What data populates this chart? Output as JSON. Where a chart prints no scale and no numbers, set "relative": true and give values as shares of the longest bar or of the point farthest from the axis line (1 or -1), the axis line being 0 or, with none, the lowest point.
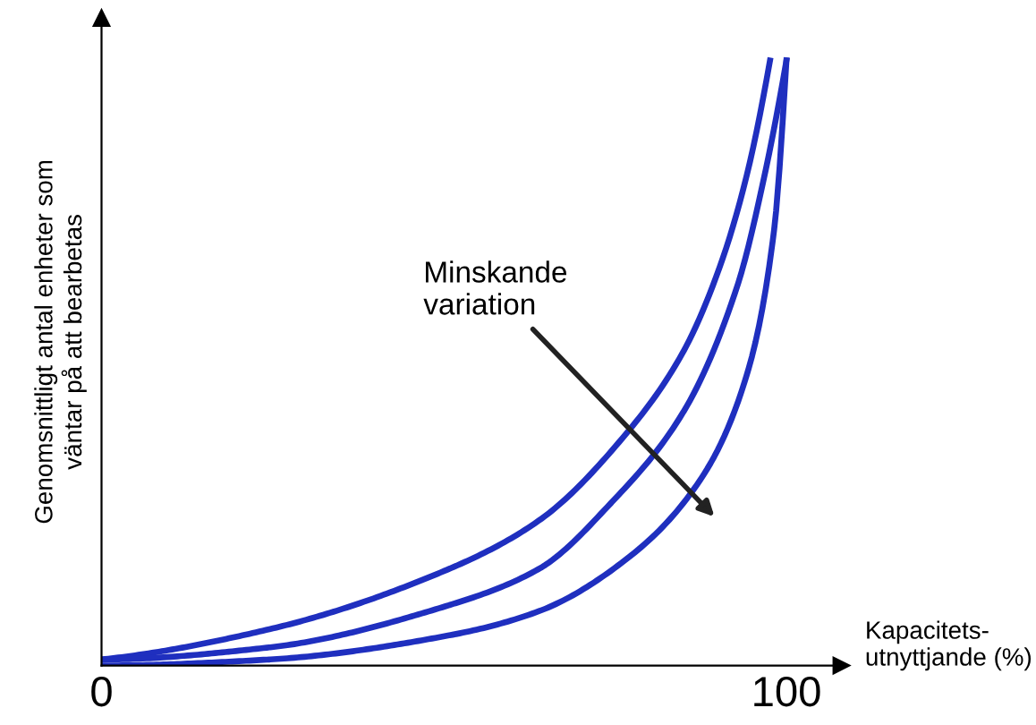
{
  "chart_data": {
    "type": "line",
    "relative": true,
    "xlabel": "Kapacitets-\nutnyttjande (%)",
    "ylabel": "Genomsnittligt antal enheter som\nväntar på att bearbetas",
    "xlim": [
      0,
      108
    ],
    "xticks": [
      0,
      100
    ],
    "tick_labels": "x",
    "grid": false,
    "marker": "none",
    "line_style": "solid",
    "annotations": [
      "Minskande\nvariation"
    ],
    "series": [
      {
        "color": "#1f2fbf",
        "x": [
          0,
          24.5,
          50.8,
          63.9,
          77.1,
          85,
          90.3,
          94.2,
          97.6
        ],
        "values": [
          0.01,
          0.06,
          0.16,
          0.24,
          0.39,
          0.52,
          0.66,
          0.81,
          1.0
        ]
      },
      {
        "color": "#1f2fbf",
        "x": [
          0,
          24.5,
          50.8,
          63.9,
          74.5,
          85,
          92.9,
          96.8,
          100
        ],
        "values": [
          0.01,
          0.03,
          0.1,
          0.16,
          0.27,
          0.42,
          0.63,
          0.81,
          1.0
        ]
      },
      {
        "color": "#1f2fbf",
        "x": [
          0,
          24.5,
          50.8,
          63.9,
          77.1,
          87.6,
          94.2,
          98.2,
          100
        ],
        "values": [
          0,
          0.01,
          0.05,
          0.09,
          0.18,
          0.31,
          0.48,
          0.72,
          1.0
        ]
      }
    ]
  }
}
